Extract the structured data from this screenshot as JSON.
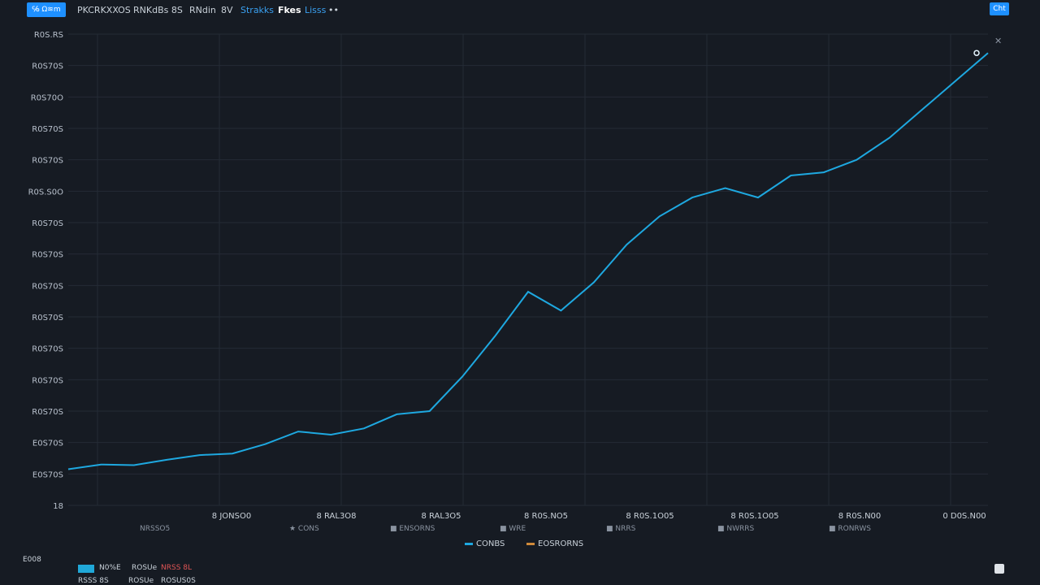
{
  "toolbar": {
    "active_tab": "℅ Ω≋m",
    "items": [
      "PKCRKXXOS",
      "RNKdBs 8S",
      "RNdin",
      "8V",
      "Strakks",
      "Fkes",
      "Lisss",
      "••"
    ],
    "right_button": "Cht"
  },
  "close_label": "✕",
  "chart_data": {
    "type": "line",
    "title": "",
    "ylabel": "",
    "xlabel": "",
    "y_tick_labels": [
      "R0S.RS",
      "R0S70S",
      "R0S70O",
      "R0S70S",
      "R0S70S",
      "R0S.S0O",
      "R0S70S",
      "R0S70S",
      "R0S70S",
      "R0S70S",
      "R0S70S",
      "R0S70S",
      "R0S70S",
      "E0S70S",
      "E0S70S",
      "18"
    ],
    "x_tick_labels": [
      "8 JONSO0",
      "8 RAL3O8",
      "8 RAL3O5",
      "8 R0S.NO5",
      "8 R0S.1O05",
      "8 R0S.1O05",
      "8 R0S.N00",
      "0 D0S.N00"
    ],
    "ylim": [
      0,
      15
    ],
    "grid": true,
    "legend": "bottom",
    "series": [
      {
        "color": "#1ea8e0",
        "x": [
          0,
          0.5,
          1,
          1.5,
          2,
          2.5,
          3,
          3.5,
          4,
          4.5,
          5,
          5.5,
          6,
          6.5,
          7,
          7.5,
          8,
          8.5,
          9,
          9.5,
          10,
          10.5,
          11,
          11.5,
          12,
          12.5,
          13,
          13.5,
          14
        ],
        "values": [
          1.15,
          1.3,
          1.28,
          1.45,
          1.6,
          1.65,
          1.95,
          2.35,
          2.25,
          2.45,
          2.9,
          3.0,
          4.1,
          5.4,
          6.8,
          6.2,
          7.1,
          8.3,
          9.2,
          9.8,
          10.1,
          9.8,
          10.5,
          10.6,
          11.0,
          11.7,
          12.6,
          13.5,
          14.4
        ]
      }
    ],
    "end_marker_label": "0"
  },
  "tick_row": [
    "NRSSO5",
    "★ CONS",
    "■ ENSORNS",
    "■ WRE",
    "■ NRRS",
    "■ NWRRS",
    "■ RONRWS"
  ],
  "legend": [
    {
      "label": "CONBS",
      "color": "#1ea8e0"
    },
    {
      "label": "EOSRORNS",
      "color": "#d08a3a"
    }
  ],
  "bottom": {
    "left_label": "E008",
    "line1": [
      "N0%E",
      "ROSUe",
      "NRSS 8L"
    ],
    "line2": [
      "RSSS 8S",
      "ROSUe",
      "ROSUS0S"
    ]
  }
}
